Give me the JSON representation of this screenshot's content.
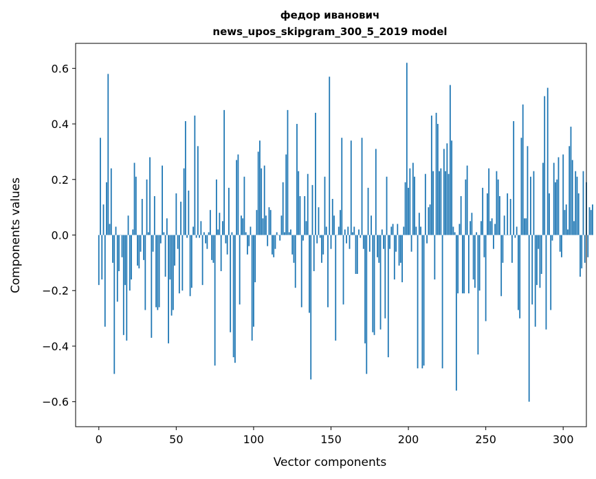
{
  "chart_data": {
    "type": "bar",
    "title_line1": "федор иванович",
    "title_line2": "news_upos_skipgram_300_5_2019 model",
    "xlabel": "Vector components",
    "ylabel": "Components values",
    "xlim": [
      -15,
      315
    ],
    "ylim": [
      -0.69,
      0.69
    ],
    "xticks": [
      0,
      50,
      100,
      150,
      200,
      250,
      300
    ],
    "xtick_labels": [
      "0",
      "50",
      "100",
      "150",
      "200",
      "250",
      "300"
    ],
    "yticks": [
      -0.6,
      -0.4,
      -0.2,
      0.0,
      0.2,
      0.4,
      0.6
    ],
    "ytick_labels": [
      "−0.6",
      "−0.4",
      "−0.2",
      "0.0",
      "0.2",
      "0.4",
      "0.6"
    ],
    "bar_color": "#1f77b4",
    "values": [
      -0.18,
      0.35,
      -0.16,
      0.11,
      -0.33,
      0.19,
      0.58,
      0.04,
      0.24,
      -0.1,
      -0.5,
      0.03,
      -0.24,
      -0.13,
      0.0,
      -0.08,
      -0.36,
      -0.18,
      -0.38,
      0.07,
      -0.2,
      -0.16,
      0.02,
      0.26,
      0.21,
      -0.11,
      -0.12,
      -0.06,
      0.13,
      -0.09,
      -0.27,
      0.2,
      0.01,
      0.28,
      -0.37,
      -0.06,
      0.14,
      -0.26,
      -0.27,
      -0.26,
      -0.03,
      0.25,
      0.01,
      -0.15,
      0.06,
      -0.39,
      -0.16,
      -0.29,
      -0.27,
      -0.11,
      0.15,
      -0.05,
      -0.21,
      0.12,
      -0.2,
      0.24,
      0.41,
      -0.01,
      0.16,
      -0.22,
      -0.19,
      0.03,
      0.43,
      -0.01,
      0.32,
      -0.01,
      0.05,
      -0.18,
      0.01,
      -0.03,
      -0.05,
      0.01,
      0.09,
      -0.09,
      -0.1,
      -0.47,
      0.2,
      0.02,
      0.08,
      -0.13,
      0.05,
      0.45,
      -0.03,
      -0.07,
      0.17,
      -0.35,
      0.01,
      -0.44,
      -0.46,
      0.27,
      0.29,
      -0.25,
      0.07,
      0.06,
      0.21,
      0.01,
      -0.07,
      -0.04,
      0.03,
      -0.38,
      -0.33,
      -0.17,
      0.09,
      0.3,
      0.34,
      0.24,
      0.06,
      0.25,
      0.07,
      -0.04,
      0.1,
      0.09,
      -0.07,
      -0.08,
      -0.05,
      0.01,
      0.0,
      -0.02,
      0.07,
      0.19,
      0.01,
      0.29,
      0.45,
      0.01,
      0.02,
      -0.07,
      -0.1,
      -0.19,
      0.4,
      0.23,
      0.14,
      -0.26,
      -0.02,
      0.14,
      0.05,
      0.22,
      -0.28,
      -0.52,
      0.18,
      -0.13,
      0.44,
      -0.03,
      0.1,
      -0.01,
      -0.1,
      -0.07,
      0.21,
      0.03,
      -0.26,
      0.57,
      -0.05,
      0.13,
      0.07,
      -0.38,
      0.0,
      0.03,
      0.09,
      0.35,
      -0.25,
      0.02,
      -0.03,
      0.03,
      -0.05,
      0.34,
      0.01,
      0.03,
      -0.14,
      -0.14,
      0.02,
      -0.01,
      0.35,
      -0.05,
      -0.39,
      -0.5,
      0.17,
      -0.06,
      0.07,
      -0.35,
      -0.36,
      0.31,
      -0.08,
      -0.1,
      -0.34,
      0.02,
      -0.05,
      -0.3,
      0.21,
      -0.44,
      -0.05,
      0.03,
      0.04,
      -0.16,
      -0.06,
      0.04,
      -0.11,
      -0.1,
      -0.17,
      0.03,
      0.19,
      0.62,
      0.17,
      0.24,
      -0.06,
      0.26,
      0.21,
      0.03,
      -0.48,
      0.08,
      0.03,
      -0.48,
      -0.47,
      0.22,
      -0.03,
      0.1,
      0.11,
      0.43,
      0.23,
      -0.16,
      0.44,
      0.4,
      0.23,
      0.24,
      -0.48,
      0.31,
      0.23,
      0.33,
      0.22,
      0.54,
      0.34,
      0.03,
      0.01,
      -0.56,
      -0.21,
      0.04,
      0.14,
      -0.21,
      -0.21,
      0.2,
      0.25,
      -0.21,
      0.05,
      0.08,
      -0.16,
      -0.19,
      0.01,
      -0.43,
      -0.2,
      0.05,
      0.17,
      -0.08,
      -0.31,
      0.15,
      0.24,
      0.05,
      0.06,
      -0.05,
      0.04,
      0.23,
      0.2,
      0.14,
      -0.22,
      -0.1,
      0.07,
      0.0,
      0.15,
      0.0,
      0.13,
      -0.1,
      0.41,
      -0.01,
      0.03,
      -0.27,
      -0.3,
      0.35,
      0.47,
      0.06,
      0.06,
      0.32,
      -0.6,
      0.21,
      -0.25,
      0.23,
      -0.33,
      -0.18,
      -0.05,
      -0.19,
      -0.14,
      0.26,
      0.5,
      -0.34,
      0.53,
      0.15,
      -0.27,
      -0.02,
      0.26,
      0.19,
      0.2,
      0.28,
      -0.06,
      -0.08,
      0.29,
      0.09,
      0.11,
      0.02,
      0.32,
      0.39,
      0.27,
      0.05,
      0.23,
      0.21,
      0.15,
      -0.15,
      -0.12,
      0.23,
      -0.1,
      0.19,
      -0.08,
      0.1,
      0.09,
      0.11
    ]
  }
}
